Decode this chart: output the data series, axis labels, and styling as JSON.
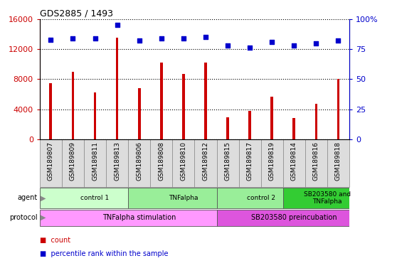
{
  "title": "GDS2885 / 1493",
  "samples": [
    "GSM189807",
    "GSM189809",
    "GSM189811",
    "GSM189813",
    "GSM189806",
    "GSM189808",
    "GSM189810",
    "GSM189812",
    "GSM189815",
    "GSM189817",
    "GSM189819",
    "GSM189814",
    "GSM189816",
    "GSM189818"
  ],
  "counts": [
    7500,
    9000,
    6200,
    13500,
    6800,
    10200,
    8700,
    10200,
    2900,
    3800,
    5700,
    2800,
    4700,
    8000
  ],
  "percentiles": [
    83,
    84,
    84,
    95,
    82,
    84,
    84,
    85,
    78,
    76,
    81,
    78,
    80,
    82
  ],
  "ylim_left": [
    0,
    16000
  ],
  "ylim_right": [
    0,
    100
  ],
  "yticks_left": [
    0,
    4000,
    8000,
    12000,
    16000
  ],
  "yticks_right": [
    0,
    25,
    50,
    75,
    100
  ],
  "agent_groups": [
    {
      "label": "control 1",
      "start": 0,
      "end": 4,
      "color": "#ccffcc"
    },
    {
      "label": "TNFalpha",
      "start": 4,
      "end": 8,
      "color": "#99ee99"
    },
    {
      "label": "control 2",
      "start": 8,
      "end": 11,
      "color": "#99ee99"
    },
    {
      "label": "SB203580 and\nTNFalpha",
      "start": 11,
      "end": 14,
      "color": "#33cc33"
    }
  ],
  "protocol_groups": [
    {
      "label": "TNFalpha stimulation",
      "start": 0,
      "end": 8,
      "color": "#ff99ff"
    },
    {
      "label": "SB203580 preincubation",
      "start": 8,
      "end": 14,
      "color": "#dd55dd"
    }
  ],
  "bar_color": "#cc0000",
  "dot_color": "#0000cc",
  "tick_label_bg": "#dddddd",
  "left_label_color": "#888888"
}
